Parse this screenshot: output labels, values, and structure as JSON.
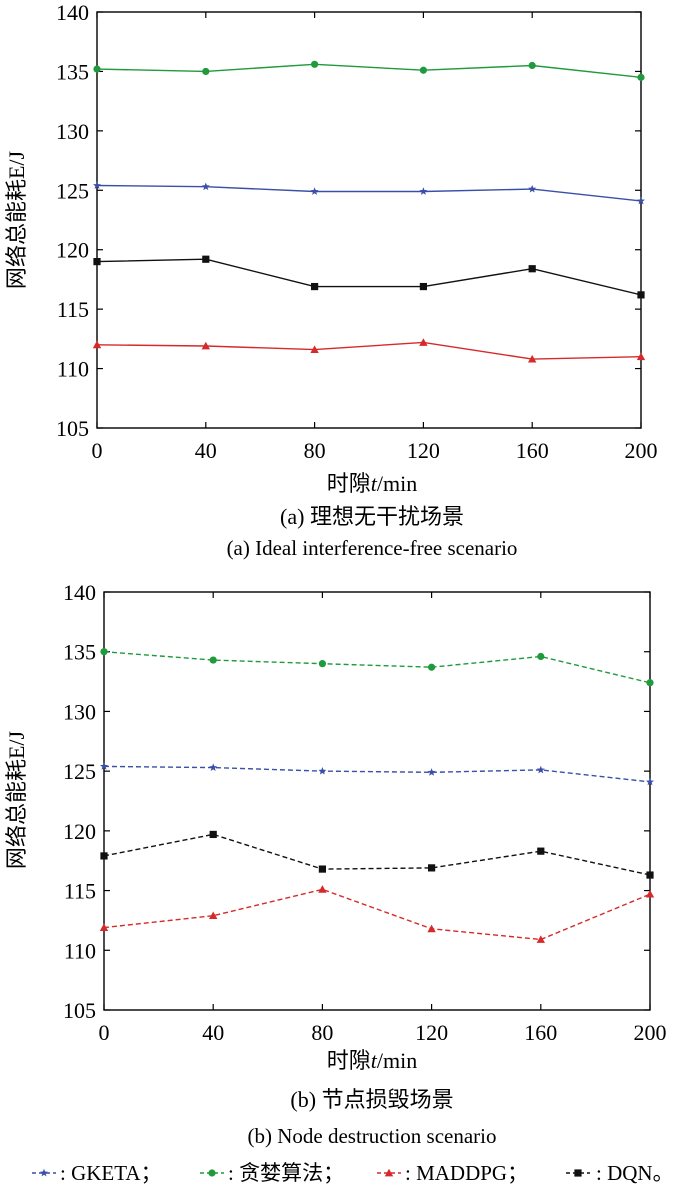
{
  "chart_data": [
    {
      "type": "line",
      "caption_cn": "(a) 理想无干扰场景",
      "caption_en": "(a) Ideal interference-free scenario",
      "xlabel_pre": "时隙",
      "xlabel_var": "t",
      "xlabel_post": "/min",
      "ylabel": "网络总能耗E/J",
      "x": [
        0,
        40,
        80,
        120,
        160,
        200
      ],
      "xlim": [
        0,
        200
      ],
      "ylim": [
        105,
        140
      ],
      "yticks": [
        105,
        110,
        115,
        120,
        125,
        130,
        135,
        140
      ],
      "line_style": "solid",
      "series": [
        {
          "key": "GKETA",
          "color": "#3a4fa8",
          "marker": "star",
          "values": [
            125.4,
            125.3,
            124.9,
            124.9,
            125.1,
            124.1
          ]
        },
        {
          "key": "greedy",
          "color": "#1f9a3c",
          "marker": "circle",
          "values": [
            135.2,
            135.0,
            135.6,
            135.1,
            135.5,
            134.5
          ]
        },
        {
          "key": "MADDPG",
          "color": "#d62a2a",
          "marker": "triangle",
          "values": [
            112.0,
            111.9,
            111.6,
            112.2,
            110.8,
            111.0
          ]
        },
        {
          "key": "DQN",
          "color": "#111111",
          "marker": "square",
          "values": [
            119.0,
            119.2,
            116.9,
            116.9,
            118.4,
            116.2
          ]
        }
      ]
    },
    {
      "type": "line",
      "caption_cn": "(b) 节点损毁场景",
      "caption_en": "(b) Node destruction scenario",
      "xlabel_pre": "时隙",
      "xlabel_var": "t",
      "xlabel_post": "/min",
      "ylabel": "网络总能耗E/J",
      "x": [
        0,
        40,
        80,
        120,
        160,
        200
      ],
      "xlim": [
        0,
        200
      ],
      "ylim": [
        105,
        140
      ],
      "yticks": [
        105,
        110,
        115,
        120,
        125,
        130,
        135,
        140
      ],
      "line_style": "dashed",
      "series": [
        {
          "key": "GKETA",
          "color": "#3a4fa8",
          "marker": "star",
          "values": [
            125.4,
            125.3,
            125.0,
            124.9,
            125.1,
            124.1
          ]
        },
        {
          "key": "greedy",
          "color": "#1f9a3c",
          "marker": "circle",
          "values": [
            135.0,
            134.3,
            134.0,
            133.7,
            134.6,
            132.4
          ]
        },
        {
          "key": "MADDPG",
          "color": "#d62a2a",
          "marker": "triangle",
          "values": [
            111.9,
            112.9,
            115.1,
            111.8,
            110.9,
            114.7
          ]
        },
        {
          "key": "DQN",
          "color": "#111111",
          "marker": "square",
          "values": [
            117.9,
            119.7,
            116.8,
            116.9,
            118.3,
            116.3
          ]
        }
      ]
    }
  ],
  "legend": {
    "separator": "；",
    "end": "。",
    "items": [
      {
        "key": "GKETA",
        "label": ": GKETA",
        "color": "#3a4fa8",
        "marker": "star"
      },
      {
        "key": "greedy",
        "label": ": 贪婪算法",
        "color": "#1f9a3c",
        "marker": "circle"
      },
      {
        "key": "MADDPG",
        "label": ": MADDPG",
        "color": "#d62a2a",
        "marker": "triangle"
      },
      {
        "key": "DQN",
        "label": ": DQN",
        "color": "#111111",
        "marker": "square"
      }
    ]
  }
}
